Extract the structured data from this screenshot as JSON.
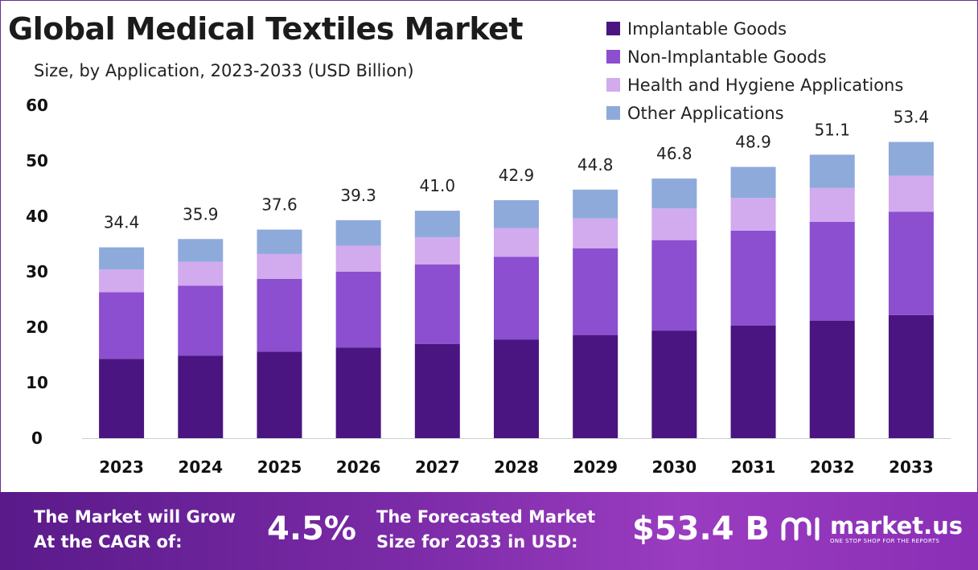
{
  "title": "Global Medical Textiles Market",
  "subtitle": "Size, by Application, 2023-2033 (USD Billion)",
  "colors": {
    "implantable": "#4a1580",
    "non_implantable": "#8b4fcf",
    "hygiene": "#d2aaee",
    "other": "#8eaadb",
    "footer": "#7a2aa6"
  },
  "chart_data": {
    "type": "bar",
    "stacked": true,
    "title": "Global Medical Textiles Market",
    "subtitle": "Size, by Application, 2023-2033 (USD Billion)",
    "categories": [
      "2023",
      "2024",
      "2025",
      "2026",
      "2027",
      "2028",
      "2029",
      "2030",
      "2031",
      "2032",
      "2033"
    ],
    "series": [
      {
        "name": "Implantable Goods",
        "color": "#4a1580",
        "values": [
          14.3,
          14.9,
          15.6,
          16.3,
          17.0,
          17.8,
          18.6,
          19.4,
          20.3,
          21.2,
          22.2
        ]
      },
      {
        "name": "Non-Implantable Goods",
        "color": "#8b4fcf",
        "values": [
          12.0,
          12.6,
          13.1,
          13.7,
          14.3,
          14.9,
          15.6,
          16.3,
          17.1,
          17.8,
          18.6
        ]
      },
      {
        "name": "Health and Hygiene Applications",
        "color": "#d2aaee",
        "values": [
          4.1,
          4.3,
          4.5,
          4.7,
          4.9,
          5.2,
          5.4,
          5.7,
          5.9,
          6.1,
          6.5
        ]
      },
      {
        "name": "Other Applications",
        "color": "#8eaadb",
        "values": [
          4.0,
          4.1,
          4.4,
          4.6,
          4.8,
          5.0,
          5.2,
          5.4,
          5.6,
          6.0,
          6.1
        ]
      }
    ],
    "totals": [
      34.4,
      35.9,
      37.6,
      39.3,
      41.0,
      42.9,
      44.8,
      46.8,
      48.9,
      51.1,
      53.4
    ],
    "total_labels": [
      "34.4",
      "35.9",
      "37.6",
      "39.3",
      "41.0",
      "42.9",
      "44.8",
      "46.8",
      "48.9",
      "51.1",
      "53.4"
    ],
    "yticks": [
      "0",
      "10",
      "20",
      "30",
      "40",
      "50",
      "60"
    ],
    "ylim": [
      0,
      60
    ],
    "grid": false,
    "legend": "top-right"
  },
  "footer": {
    "cagr_label_line1": "The Market will Grow",
    "cagr_label_line2": "At the CAGR of:",
    "cagr_value": "4.5%",
    "forecast_label_line1": "The Forecasted Market",
    "forecast_label_line2": "Size for 2033 in USD:",
    "forecast_value": "$53.4 B",
    "logo_text": "market.us",
    "logo_tagline": "ONE STOP SHOP FOR THE REPORTS",
    "logo_icon": "market-us-logo-icon"
  }
}
